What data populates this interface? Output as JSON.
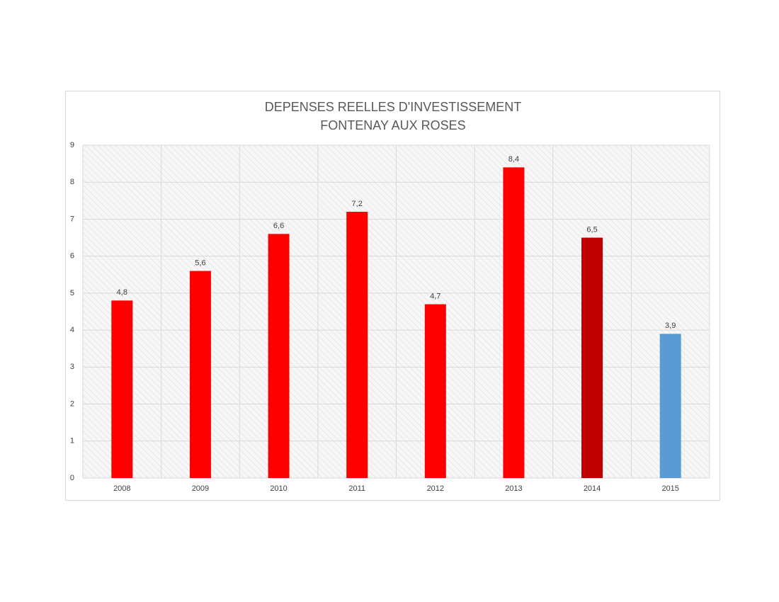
{
  "chart_data": {
    "type": "bar",
    "title": "DEPENSES REELLES D'INVESTISSEMENT",
    "subtitle": "FONTENAY AUX ROSES",
    "categories": [
      "2008",
      "2009",
      "2010",
      "2011",
      "2012",
      "2013",
      "2014",
      "2015"
    ],
    "values": [
      4.8,
      5.6,
      6.6,
      7.2,
      4.7,
      8.4,
      6.5,
      3.9
    ],
    "value_labels": [
      "4,8",
      "5,6",
      "6,6",
      "7,2",
      "4,7",
      "8,4",
      "6,5",
      "3,9"
    ],
    "colors": [
      "#ff0000",
      "#ff0000",
      "#ff0000",
      "#ff0000",
      "#ff0000",
      "#ff0000",
      "#c00000",
      "#5b9bd5"
    ],
    "ylim": [
      0,
      9
    ],
    "yticks": [
      0,
      1,
      2,
      3,
      4,
      5,
      6,
      7,
      8,
      9
    ],
    "grid": true
  }
}
